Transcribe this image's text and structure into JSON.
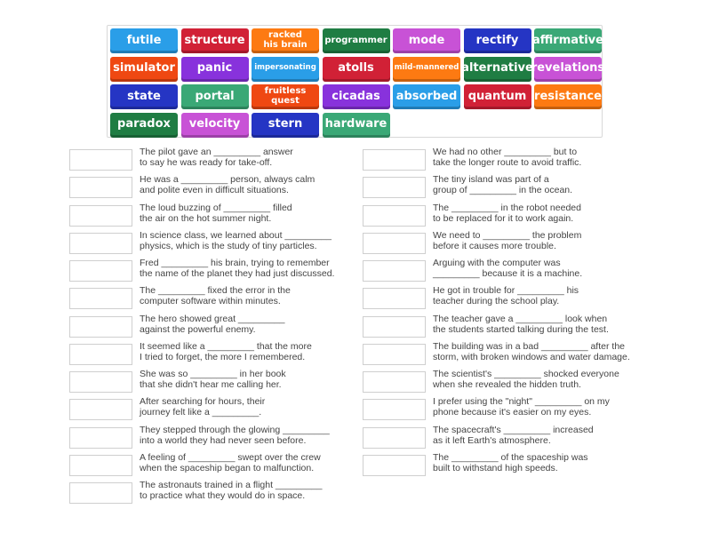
{
  "word_bank": [
    {
      "text": "futile",
      "color": "#2a9ee8"
    },
    {
      "text": "structure",
      "color": "#d12136"
    },
    {
      "text": "racked\nhis brain",
      "color": "#fd7a12"
    },
    {
      "text": "programmer",
      "color": "#1f7d43"
    },
    {
      "text": "mode",
      "color": "#c852d6"
    },
    {
      "text": "rectify",
      "color": "#2535c4"
    },
    {
      "text": "affirmative",
      "color": "#3aa876"
    },
    {
      "text": "simulator",
      "color": "#ef4812"
    },
    {
      "text": "panic",
      "color": "#8832dc"
    },
    {
      "text": "impersonating",
      "color": "#2a9ee8"
    },
    {
      "text": "atolls",
      "color": "#d12136"
    },
    {
      "text": "mild-mannered",
      "color": "#fd7a12"
    },
    {
      "text": "alternative",
      "color": "#1f7d43"
    },
    {
      "text": "revelations",
      "color": "#c852d6"
    },
    {
      "text": "state",
      "color": "#2535c4"
    },
    {
      "text": "portal",
      "color": "#3aa876"
    },
    {
      "text": "fruitless\nquest",
      "color": "#ef4812"
    },
    {
      "text": "cicadas",
      "color": "#8832dc"
    },
    {
      "text": "absorbed",
      "color": "#2a9ee8"
    },
    {
      "text": "quantum",
      "color": "#d12136"
    },
    {
      "text": "resistance",
      "color": "#fd7a12"
    },
    {
      "text": "paradox",
      "color": "#1f7d43"
    },
    {
      "text": "velocity",
      "color": "#c852d6"
    },
    {
      "text": "stern",
      "color": "#2535c4"
    },
    {
      "text": "hardware",
      "color": "#3aa876"
    }
  ],
  "left_sentences": [
    "The pilot gave an _________ answer\nto say he was ready for take-off.",
    "He was a _________ person, always calm\nand polite even in difficult situations.",
    "The loud buzzing of _________ filled\nthe air on the hot summer night.",
    "In science class, we learned about _________\nphysics, which is the study of tiny particles.",
    "Fred _________ his brain, trying to remember\nthe name of the planet they had just discussed.",
    "The _________ fixed the error in the\ncomputer software within minutes.",
    "The hero showed great _________\nagainst the powerful enemy.",
    "It seemed like a _________ that the more\nI tried to forget, the more I remembered.",
    "She was so _________ in her book\nthat she didn't hear me calling her.",
    "After searching for hours, their\njourney felt like a _________.",
    "They stepped through the glowing _________\ninto a world they had never seen before.",
    "A feeling of _________ swept over the crew\nwhen the spaceship began to malfunction.",
    "The astronauts trained in a flight _________\nto practice what they would do in space."
  ],
  "right_sentences": [
    "We had no other _________ but to\ntake the longer route to avoid traffic.",
    "The tiny island was part of a\ngroup of _________ in the ocean.",
    "The _________ in the robot needed\nto be replaced for it to work again.",
    "We need to _________ the problem\nbefore it causes more trouble.",
    "Arguing with the computer was\n_________ because it is a machine.",
    "He got in trouble for _________ his\nteacher during the school play.",
    "The teacher gave a _________ look when\nthe students started talking during the test.",
    "The building was in a bad _________ after the\nstorm, with broken windows and water damage.",
    "The scientist's _________ shocked everyone\nwhen she revealed the hidden truth.",
    "I prefer using the \"night\" _________ on my\nphone because it's easier on my eyes.",
    "The spacecraft's _________ increased\nas it left Earth's atmosphere.",
    "The _________ of the spaceship was\nbuilt to withstand high speeds."
  ]
}
